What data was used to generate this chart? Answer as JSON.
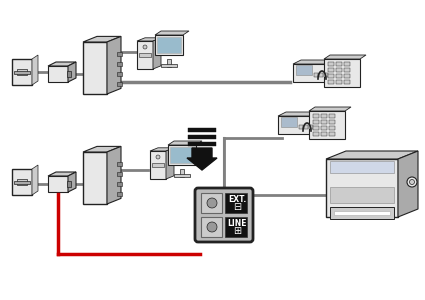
{
  "bg_color": "#ffffff",
  "cable_gray": "#808080",
  "cable_red": "#cc0000",
  "outline_dark": "#222222",
  "outline_mid": "#555555",
  "face_light": "#e8e8e8",
  "face_mid": "#cccccc",
  "face_dark": "#aaaaaa",
  "face_side": "#b0b0b0",
  "screen_blue": "#99bbcc",
  "text_ext": "EXT.",
  "text_line": "LINE",
  "figsize": [
    4.25,
    3.0
  ],
  "dpi": 100
}
